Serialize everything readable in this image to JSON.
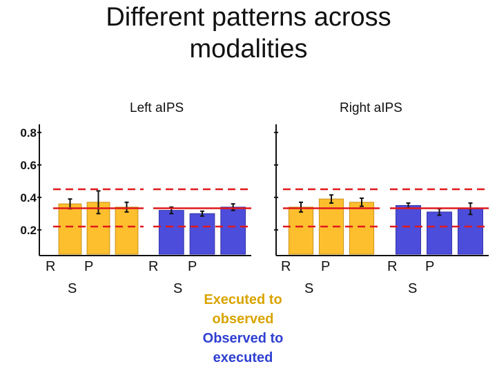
{
  "slide": {
    "title_line1": "Different patterns across",
    "title_line2": "modalities"
  },
  "legend": {
    "executed_to_observed_line1": "Executed to",
    "executed_to_observed_line2": "observed",
    "observed_to_executed_line1": "Observed to",
    "observed_to_executed_line2": "executed"
  },
  "colors": {
    "executed_to_observed": "#fdbf2e",
    "observed_to_executed": "#4d4ddb",
    "threshold_line": "#e0191b"
  },
  "chart_data": [
    {
      "type": "bar",
      "title": "Left aIPS",
      "ylim": [
        0.05,
        0.85
      ],
      "yticks": [
        "0.2",
        "0.4",
        "0.6",
        "0.8"
      ],
      "groups": [
        {
          "name": "Executed to observed",
          "categories": [
            "R",
            "S",
            "P"
          ],
          "values": [
            0.36,
            0.37,
            0.34
          ],
          "errors": [
            0.03,
            0.07,
            0.03
          ],
          "chance": 0.333,
          "upper_bound": 0.45,
          "lower_bound": 0.22
        },
        {
          "name": "Observed to executed",
          "categories": [
            "R",
            "S",
            "P"
          ],
          "values": [
            0.32,
            0.3,
            0.34
          ],
          "errors": [
            0.02,
            0.015,
            0.02
          ],
          "chance": 0.333,
          "upper_bound": 0.45,
          "lower_bound": 0.22
        }
      ]
    },
    {
      "type": "bar",
      "title": "Right aIPS",
      "ylim": [
        0.05,
        0.85
      ],
      "yticks": [
        "0.2",
        "0.4",
        "0.6",
        "0.8"
      ],
      "groups": [
        {
          "name": "Executed to observed",
          "categories": [
            "R",
            "S",
            "P"
          ],
          "values": [
            0.34,
            0.39,
            0.37
          ],
          "errors": [
            0.03,
            0.025,
            0.025
          ],
          "chance": 0.333,
          "upper_bound": 0.45,
          "lower_bound": 0.22
        },
        {
          "name": "Observed to executed",
          "categories": [
            "R",
            "S",
            "P"
          ],
          "values": [
            0.35,
            0.31,
            0.33
          ],
          "errors": [
            0.015,
            0.02,
            0.035
          ],
          "chance": 0.333,
          "upper_bound": 0.45,
          "lower_bound": 0.22
        }
      ]
    }
  ]
}
